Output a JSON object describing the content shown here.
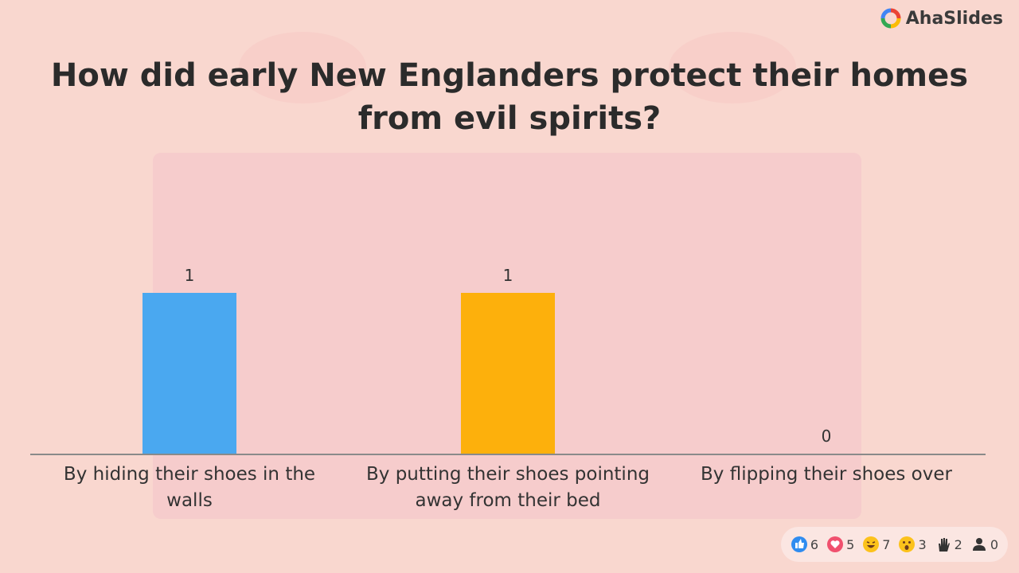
{
  "brand": "AhaSlides",
  "chart_data": {
    "type": "bar",
    "title": "How did early New Englanders protect their homes from evil spirits?",
    "categories": [
      "By hiding their shoes in the walls",
      "By putting their shoes pointing away from their bed",
      "By flipping their shoes over"
    ],
    "values": [
      1,
      1,
      0
    ],
    "colors": [
      "#4aa8f0",
      "#fdb00c",
      "#f0506e"
    ]
  },
  "reactions": [
    6,
    5,
    7,
    3,
    2,
    0
  ]
}
